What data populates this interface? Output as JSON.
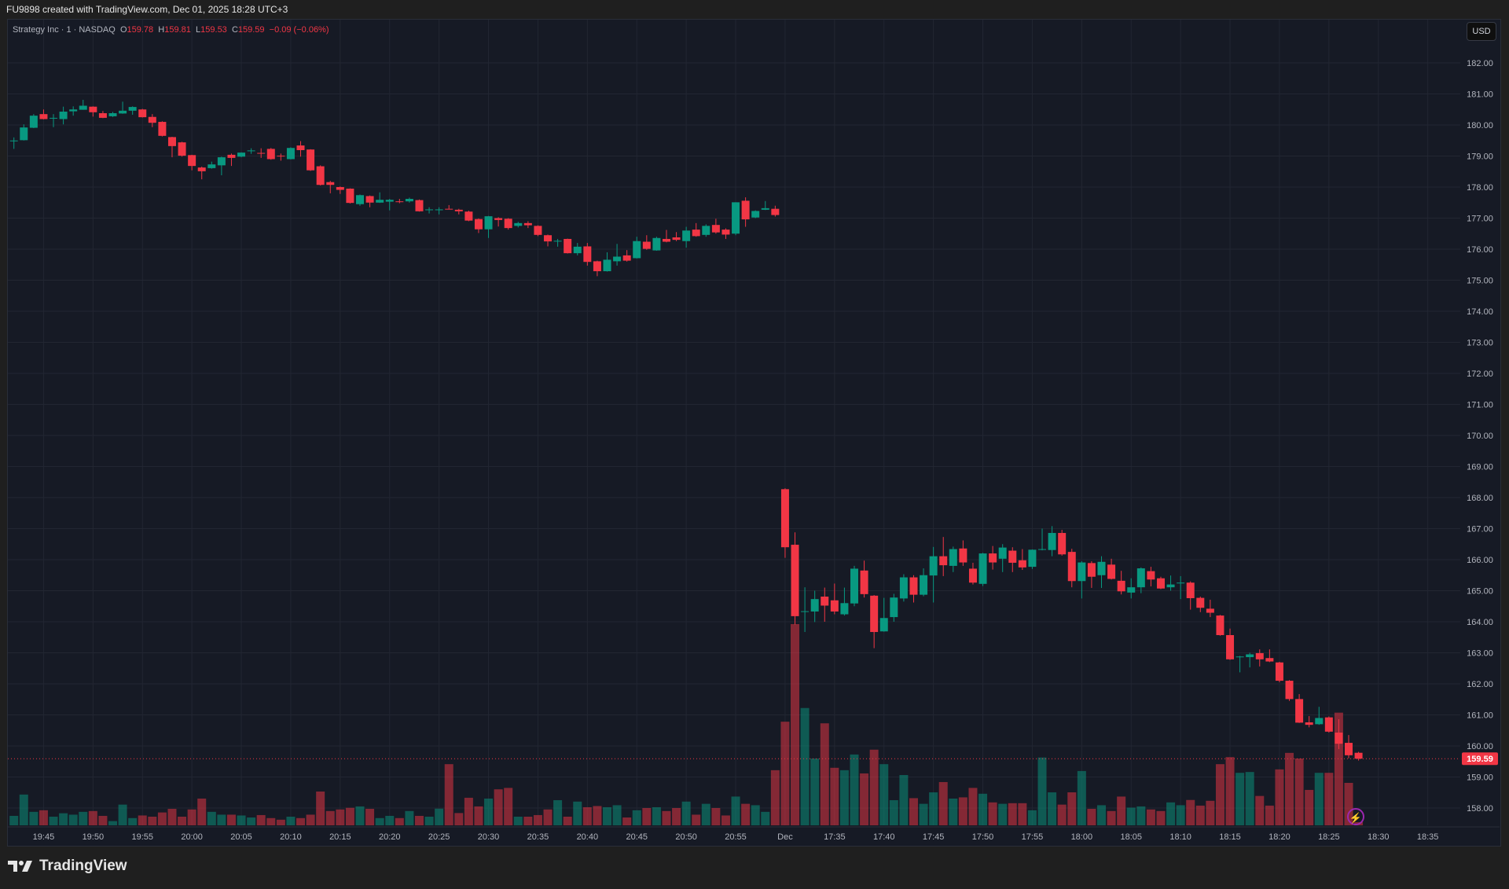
{
  "header": {
    "attribution": "FU9898 created with TradingView.com, Dec 01, 2025 18:28 UTC+3"
  },
  "legend": {
    "symbol": "Strategy Inc · 1 · NASDAQ",
    "o_label": "O",
    "o": "159.78",
    "h_label": "H",
    "h": "159.81",
    "l_label": "L",
    "l": "159.53",
    "c_label": "C",
    "c": "159.59",
    "change": "−0.09 (−0.06%)"
  },
  "currency_button": "USD",
  "footer": {
    "brand": "TradingView"
  },
  "colors": {
    "up": "#089981",
    "down": "#f23645",
    "background": "#161a25",
    "grid": "#222632"
  },
  "chart_data": {
    "type": "candlestick",
    "ylim": [
      157.2,
      182.4
    ],
    "grid": true,
    "last_price": "159.59",
    "price_ticks": [
      "182.00",
      "181.00",
      "180.00",
      "179.00",
      "178.00",
      "177.00",
      "176.00",
      "175.00",
      "174.00",
      "173.00",
      "172.00",
      "171.00",
      "170.00",
      "169.00",
      "168.00",
      "167.00",
      "166.00",
      "165.00",
      "164.00",
      "163.00",
      "162.00",
      "161.00",
      "160.00",
      "159.00",
      "158.00"
    ],
    "time_ticks": [
      {
        "label": "19:45",
        "time": "19:45"
      },
      {
        "label": "19:50",
        "time": "19:50"
      },
      {
        "label": "19:55",
        "time": "19:55"
      },
      {
        "label": "20:00",
        "time": "20:00"
      },
      {
        "label": "20:05",
        "time": "20:05"
      },
      {
        "label": "20:10",
        "time": "20:10"
      },
      {
        "label": "20:15",
        "time": "20:15"
      },
      {
        "label": "20:20",
        "time": "20:20"
      },
      {
        "label": "20:25",
        "time": "20:25"
      },
      {
        "label": "20:30",
        "time": "20:30"
      },
      {
        "label": "20:35",
        "time": "20:35"
      },
      {
        "label": "20:40",
        "time": "20:40"
      },
      {
        "label": "20:45",
        "time": "20:45"
      },
      {
        "label": "20:50",
        "time": "20:50"
      },
      {
        "label": "20:55",
        "time": "20:55"
      },
      {
        "label": "Dec",
        "time": "17:30"
      },
      {
        "label": "17:35",
        "time": "17:35"
      },
      {
        "label": "17:40",
        "time": "17:40"
      },
      {
        "label": "17:45",
        "time": "17:45"
      },
      {
        "label": "17:50",
        "time": "17:50"
      },
      {
        "label": "17:55",
        "time": "17:55"
      },
      {
        "label": "18:00",
        "time": "18:00"
      },
      {
        "label": "18:05",
        "time": "18:05"
      },
      {
        "label": "18:10",
        "time": "18:10"
      },
      {
        "label": "18:15",
        "time": "18:15"
      },
      {
        "label": "18:20",
        "time": "18:20"
      },
      {
        "label": "18:25",
        "time": "18:25"
      },
      {
        "label": "18:30",
        "time": "18:30"
      },
      {
        "label": "18:35",
        "time": "18:35"
      }
    ],
    "volume_unit": "percent of largest bar",
    "candle_fields": [
      "time",
      "open",
      "high",
      "low",
      "close",
      "volume"
    ],
    "candles": [
      [
        "19:42",
        179.49,
        179.6,
        179.23,
        179.5,
        4.7
      ],
      [
        "19:43",
        179.51,
        180.02,
        179.5,
        179.92,
        15.3
      ],
      [
        "19:44",
        179.91,
        180.35,
        179.9,
        180.3,
        6.7
      ],
      [
        "19:45",
        180.35,
        180.5,
        180.18,
        180.19,
        7.5
      ],
      [
        "19:46",
        180.21,
        180.35,
        179.93,
        180.23,
        4.3
      ],
      [
        "19:47",
        180.19,
        180.59,
        180.02,
        180.43,
        6.0
      ],
      [
        "19:48",
        180.44,
        180.6,
        180.3,
        180.5,
        5.3
      ],
      [
        "19:49",
        180.49,
        180.81,
        180.49,
        180.62,
        6.7
      ],
      [
        "19:50",
        180.59,
        180.6,
        180.27,
        180.41,
        7.1
      ],
      [
        "19:51",
        180.38,
        180.45,
        180.22,
        180.23,
        4.7
      ],
      [
        "19:52",
        180.28,
        180.42,
        180.26,
        180.38,
        2.1
      ],
      [
        "19:53",
        180.37,
        180.75,
        180.36,
        180.46,
        10.3
      ],
      [
        "19:54",
        180.46,
        180.6,
        180.33,
        180.58,
        3.6
      ],
      [
        "19:55",
        180.5,
        180.52,
        180.24,
        180.25,
        4.9
      ],
      [
        "19:56",
        180.26,
        180.35,
        179.93,
        180.07,
        4.3
      ],
      [
        "19:57",
        180.1,
        180.12,
        179.63,
        179.65,
        6.4
      ],
      [
        "19:58",
        179.61,
        179.62,
        178.96,
        179.32,
        8.2
      ],
      [
        "19:59",
        179.44,
        179.46,
        178.98,
        179.01,
        4.3
      ],
      [
        "20:00",
        179.03,
        179.04,
        178.54,
        178.68,
        7.9
      ],
      [
        "20:01",
        178.63,
        178.66,
        178.25,
        178.51,
        13.3
      ],
      [
        "20:02",
        178.61,
        178.82,
        178.59,
        178.73,
        6.7
      ],
      [
        "20:03",
        178.7,
        178.98,
        178.38,
        178.96,
        5.3
      ],
      [
        "20:04",
        179.04,
        179.08,
        178.68,
        178.94,
        5.3
      ],
      [
        "20:05",
        178.98,
        179.12,
        178.96,
        179.11,
        4.9
      ],
      [
        "20:06",
        179.16,
        179.25,
        179.07,
        179.18,
        3.9
      ],
      [
        "20:07",
        179.1,
        179.25,
        178.94,
        179.08,
        5.1
      ],
      [
        "20:08",
        179.23,
        179.26,
        178.88,
        178.9,
        3.6
      ],
      [
        "20:09",
        179.01,
        179.08,
        178.85,
        178.99,
        2.8
      ],
      [
        "20:10",
        178.9,
        179.28,
        178.89,
        179.26,
        4.3
      ],
      [
        "20:11",
        179.34,
        179.48,
        178.98,
        179.19,
        3.6
      ],
      [
        "20:12",
        179.21,
        179.22,
        178.52,
        178.54,
        5.3
      ],
      [
        "20:13",
        178.67,
        178.7,
        178.05,
        178.07,
        16.8
      ],
      [
        "20:14",
        178.16,
        178.2,
        177.8,
        178.07,
        7.1
      ],
      [
        "20:15",
        178.0,
        178.02,
        177.78,
        177.91,
        7.9
      ],
      [
        "20:16",
        177.95,
        177.96,
        177.47,
        177.49,
        8.7
      ],
      [
        "20:17",
        177.45,
        177.76,
        177.4,
        177.74,
        9.4
      ],
      [
        "20:18",
        177.71,
        177.73,
        177.35,
        177.5,
        8.2
      ],
      [
        "20:19",
        177.5,
        177.83,
        177.49,
        177.59,
        3.6
      ],
      [
        "20:20",
        177.53,
        177.62,
        177.25,
        177.59,
        4.7
      ],
      [
        "20:21",
        177.54,
        177.62,
        177.48,
        177.52,
        3.6
      ],
      [
        "20:22",
        177.54,
        177.66,
        177.5,
        177.62,
        7.1
      ],
      [
        "20:23",
        177.58,
        177.6,
        177.21,
        177.22,
        4.7
      ],
      [
        "20:24",
        177.26,
        177.35,
        177.15,
        177.28,
        4.3
      ],
      [
        "20:25",
        177.26,
        177.35,
        177.12,
        177.28,
        8.3
      ],
      [
        "20:26",
        177.3,
        177.42,
        177.28,
        177.29,
        30.4
      ],
      [
        "20:27",
        177.27,
        177.3,
        177.12,
        177.22,
        6.1
      ],
      [
        "20:28",
        177.21,
        177.24,
        176.9,
        176.92,
        13.7
      ],
      [
        "20:29",
        176.97,
        176.99,
        176.52,
        176.64,
        9.4
      ],
      [
        "20:30",
        176.64,
        177.07,
        176.36,
        177.06,
        13.3
      ],
      [
        "20:31",
        177.0,
        177.03,
        176.73,
        176.94,
        17.9
      ],
      [
        "20:32",
        176.98,
        177.0,
        176.63,
        176.68,
        18.6
      ],
      [
        "20:33",
        176.75,
        176.88,
        176.7,
        176.84,
        4.3
      ],
      [
        "20:34",
        176.84,
        176.9,
        176.68,
        176.77,
        4.3
      ],
      [
        "20:35",
        176.75,
        176.77,
        176.42,
        176.46,
        5.1
      ],
      [
        "20:36",
        176.45,
        176.47,
        176.09,
        176.25,
        7.9
      ],
      [
        "20:37",
        176.25,
        176.33,
        176.08,
        176.27,
        12.5
      ],
      [
        "20:38",
        176.33,
        176.34,
        175.86,
        175.87,
        4.3
      ],
      [
        "20:39",
        175.87,
        176.2,
        175.8,
        176.08,
        11.8
      ],
      [
        "20:40",
        176.09,
        176.2,
        175.47,
        175.59,
        9.0
      ],
      [
        "20:41",
        175.61,
        175.63,
        175.13,
        175.29,
        9.6
      ],
      [
        "20:42",
        175.29,
        175.9,
        175.28,
        175.66,
        9.0
      ],
      [
        "20:43",
        175.61,
        176.17,
        175.47,
        175.76,
        10.0
      ],
      [
        "20:44",
        175.8,
        175.97,
        175.6,
        175.63,
        3.9
      ],
      [
        "20:45",
        175.71,
        176.4,
        175.7,
        176.26,
        7.5
      ],
      [
        "20:46",
        176.24,
        176.45,
        175.98,
        176.01,
        8.6
      ],
      [
        "20:47",
        175.96,
        176.4,
        175.95,
        176.36,
        9.0
      ],
      [
        "20:48",
        176.33,
        176.62,
        176.22,
        176.24,
        7.1
      ],
      [
        "20:49",
        176.38,
        176.55,
        176.26,
        176.3,
        8.6
      ],
      [
        "20:50",
        176.26,
        176.72,
        176.05,
        176.6,
        11.8
      ],
      [
        "20:51",
        176.63,
        176.84,
        176.4,
        176.42,
        5.3
      ],
      [
        "20:52",
        176.46,
        176.8,
        176.4,
        176.75,
        10.7
      ],
      [
        "20:53",
        176.78,
        176.98,
        176.5,
        176.54,
        8.6
      ],
      [
        "20:54",
        176.63,
        176.67,
        176.33,
        176.47,
        4.9
      ],
      [
        "20:55",
        176.5,
        177.51,
        176.45,
        177.51,
        14.3
      ],
      [
        "20:56",
        177.56,
        177.67,
        176.72,
        176.96,
        10.7
      ],
      [
        "20:57",
        177.02,
        177.25,
        177.0,
        177.23,
        10.0
      ],
      [
        "20:58",
        177.27,
        177.55,
        177.26,
        177.32,
        6.7
      ],
      [
        "20:59",
        177.3,
        177.4,
        177.05,
        177.1,
        27.4
      ],
      [
        "17:30",
        168.27,
        168.3,
        166.06,
        166.4,
        51.5
      ],
      [
        "17:31",
        166.48,
        166.88,
        163.91,
        164.18,
        100
      ],
      [
        "17:32",
        164.32,
        165.11,
        163.67,
        164.34,
        58.3
      ],
      [
        "17:33",
        164.33,
        165.0,
        163.99,
        164.73,
        33.2
      ],
      [
        "17:34",
        164.81,
        165.1,
        164.0,
        164.52,
        50.7
      ],
      [
        "17:35",
        164.69,
        165.23,
        164.24,
        164.33,
        28.6
      ],
      [
        "17:36",
        164.24,
        165.1,
        164.2,
        164.6,
        27.4
      ],
      [
        "17:37",
        164.59,
        165.8,
        164.5,
        165.71,
        35.2
      ],
      [
        "17:38",
        165.65,
        165.97,
        164.78,
        164.89,
        25.8
      ],
      [
        "17:39",
        164.84,
        164.86,
        163.15,
        163.67,
        37.6
      ],
      [
        "17:40",
        163.69,
        164.77,
        163.68,
        164.12,
        30.4
      ],
      [
        "17:41",
        164.15,
        164.9,
        164.0,
        164.78,
        12.5
      ],
      [
        "17:42",
        164.75,
        165.53,
        164.65,
        165.43,
        25.0
      ],
      [
        "17:43",
        165.43,
        165.5,
        164.62,
        164.87,
        13.5
      ],
      [
        "17:44",
        164.87,
        165.72,
        164.82,
        165.5,
        10.7
      ],
      [
        "17:45",
        165.49,
        166.41,
        164.62,
        166.11,
        16.4
      ],
      [
        "17:46",
        166.11,
        166.73,
        165.47,
        165.82,
        21.5
      ],
      [
        "17:47",
        165.8,
        166.42,
        165.6,
        166.34,
        13.3
      ],
      [
        "17:48",
        166.36,
        166.62,
        165.8,
        165.91,
        13.9
      ],
      [
        "17:49",
        165.71,
        165.9,
        165.2,
        165.26,
        18.6
      ],
      [
        "17:50",
        165.22,
        166.22,
        165.15,
        166.2,
        15.7
      ],
      [
        "17:51",
        166.2,
        166.44,
        165.68,
        165.91,
        11.4
      ],
      [
        "17:52",
        166.03,
        166.5,
        165.6,
        166.39,
        10.7
      ],
      [
        "17:53",
        166.29,
        166.4,
        165.6,
        165.9,
        11.0
      ],
      [
        "17:54",
        165.98,
        166.34,
        165.67,
        165.75,
        11.0
      ],
      [
        "17:55",
        165.77,
        166.33,
        165.7,
        166.32,
        7.5
      ],
      [
        "17:56",
        166.32,
        167.0,
        166.3,
        166.34,
        33.7
      ],
      [
        "17:57",
        166.31,
        167.08,
        166.11,
        166.86,
        16.4
      ],
      [
        "17:58",
        166.86,
        166.96,
        166.13,
        166.17,
        10.3
      ],
      [
        "17:59",
        166.25,
        166.35,
        165.11,
        165.31,
        16.4
      ],
      [
        "18:00",
        165.31,
        165.95,
        164.75,
        165.91,
        27.0
      ],
      [
        "18:01",
        165.89,
        165.95,
        165.09,
        165.45,
        8.2
      ],
      [
        "18:02",
        165.5,
        166.11,
        165.09,
        165.93,
        10.0
      ],
      [
        "18:03",
        165.84,
        166.03,
        165.36,
        165.38,
        7.1
      ],
      [
        "18:04",
        165.32,
        165.64,
        164.88,
        164.98,
        14.3
      ],
      [
        "18:05",
        164.94,
        165.4,
        164.75,
        165.11,
        8.8
      ],
      [
        "18:06",
        165.11,
        165.75,
        164.92,
        165.72,
        9.4
      ],
      [
        "18:07",
        165.63,
        165.77,
        165.14,
        165.36,
        7.9
      ],
      [
        "18:08",
        165.4,
        165.45,
        165.05,
        165.07,
        7.1
      ],
      [
        "18:09",
        165.11,
        165.49,
        165.0,
        165.2,
        11.4
      ],
      [
        "18:10",
        165.24,
        165.47,
        164.73,
        165.26,
        10.0
      ],
      [
        "18:11",
        165.26,
        165.3,
        164.39,
        164.76,
        12.6
      ],
      [
        "18:12",
        164.77,
        164.81,
        164.31,
        164.45,
        9.8
      ],
      [
        "18:13",
        164.42,
        164.71,
        164.15,
        164.29,
        12.2
      ],
      [
        "18:14",
        164.2,
        164.22,
        163.55,
        163.57,
        30.4
      ],
      [
        "18:15",
        163.57,
        163.78,
        162.77,
        162.79,
        33.9
      ],
      [
        "18:16",
        162.86,
        162.9,
        162.37,
        162.88,
        26.1
      ],
      [
        "18:17",
        162.86,
        163.0,
        162.53,
        162.95,
        26.5
      ],
      [
        "18:18",
        162.99,
        163.11,
        162.56,
        162.79,
        14.6
      ],
      [
        "18:19",
        162.83,
        163.11,
        162.7,
        162.72,
        9.8
      ],
      [
        "18:20",
        162.69,
        162.71,
        162.05,
        162.1,
        27.8
      ],
      [
        "18:21",
        162.1,
        162.12,
        161.45,
        161.51,
        36.0
      ],
      [
        "18:22",
        161.51,
        161.67,
        160.74,
        160.75,
        33.2
      ],
      [
        "18:23",
        160.76,
        160.96,
        160.6,
        160.68,
        17.6
      ],
      [
        "18:24",
        160.7,
        161.26,
        160.68,
        160.9,
        26.1
      ],
      [
        "18:25",
        160.92,
        160.95,
        160.43,
        160.46,
        26.1
      ],
      [
        "18:26",
        160.43,
        160.86,
        159.9,
        160.07,
        56.0
      ],
      [
        "18:27",
        160.1,
        160.35,
        159.6,
        159.7,
        21.1
      ],
      [
        "18:28",
        159.78,
        159.81,
        159.53,
        159.59,
        1.6
      ]
    ]
  }
}
